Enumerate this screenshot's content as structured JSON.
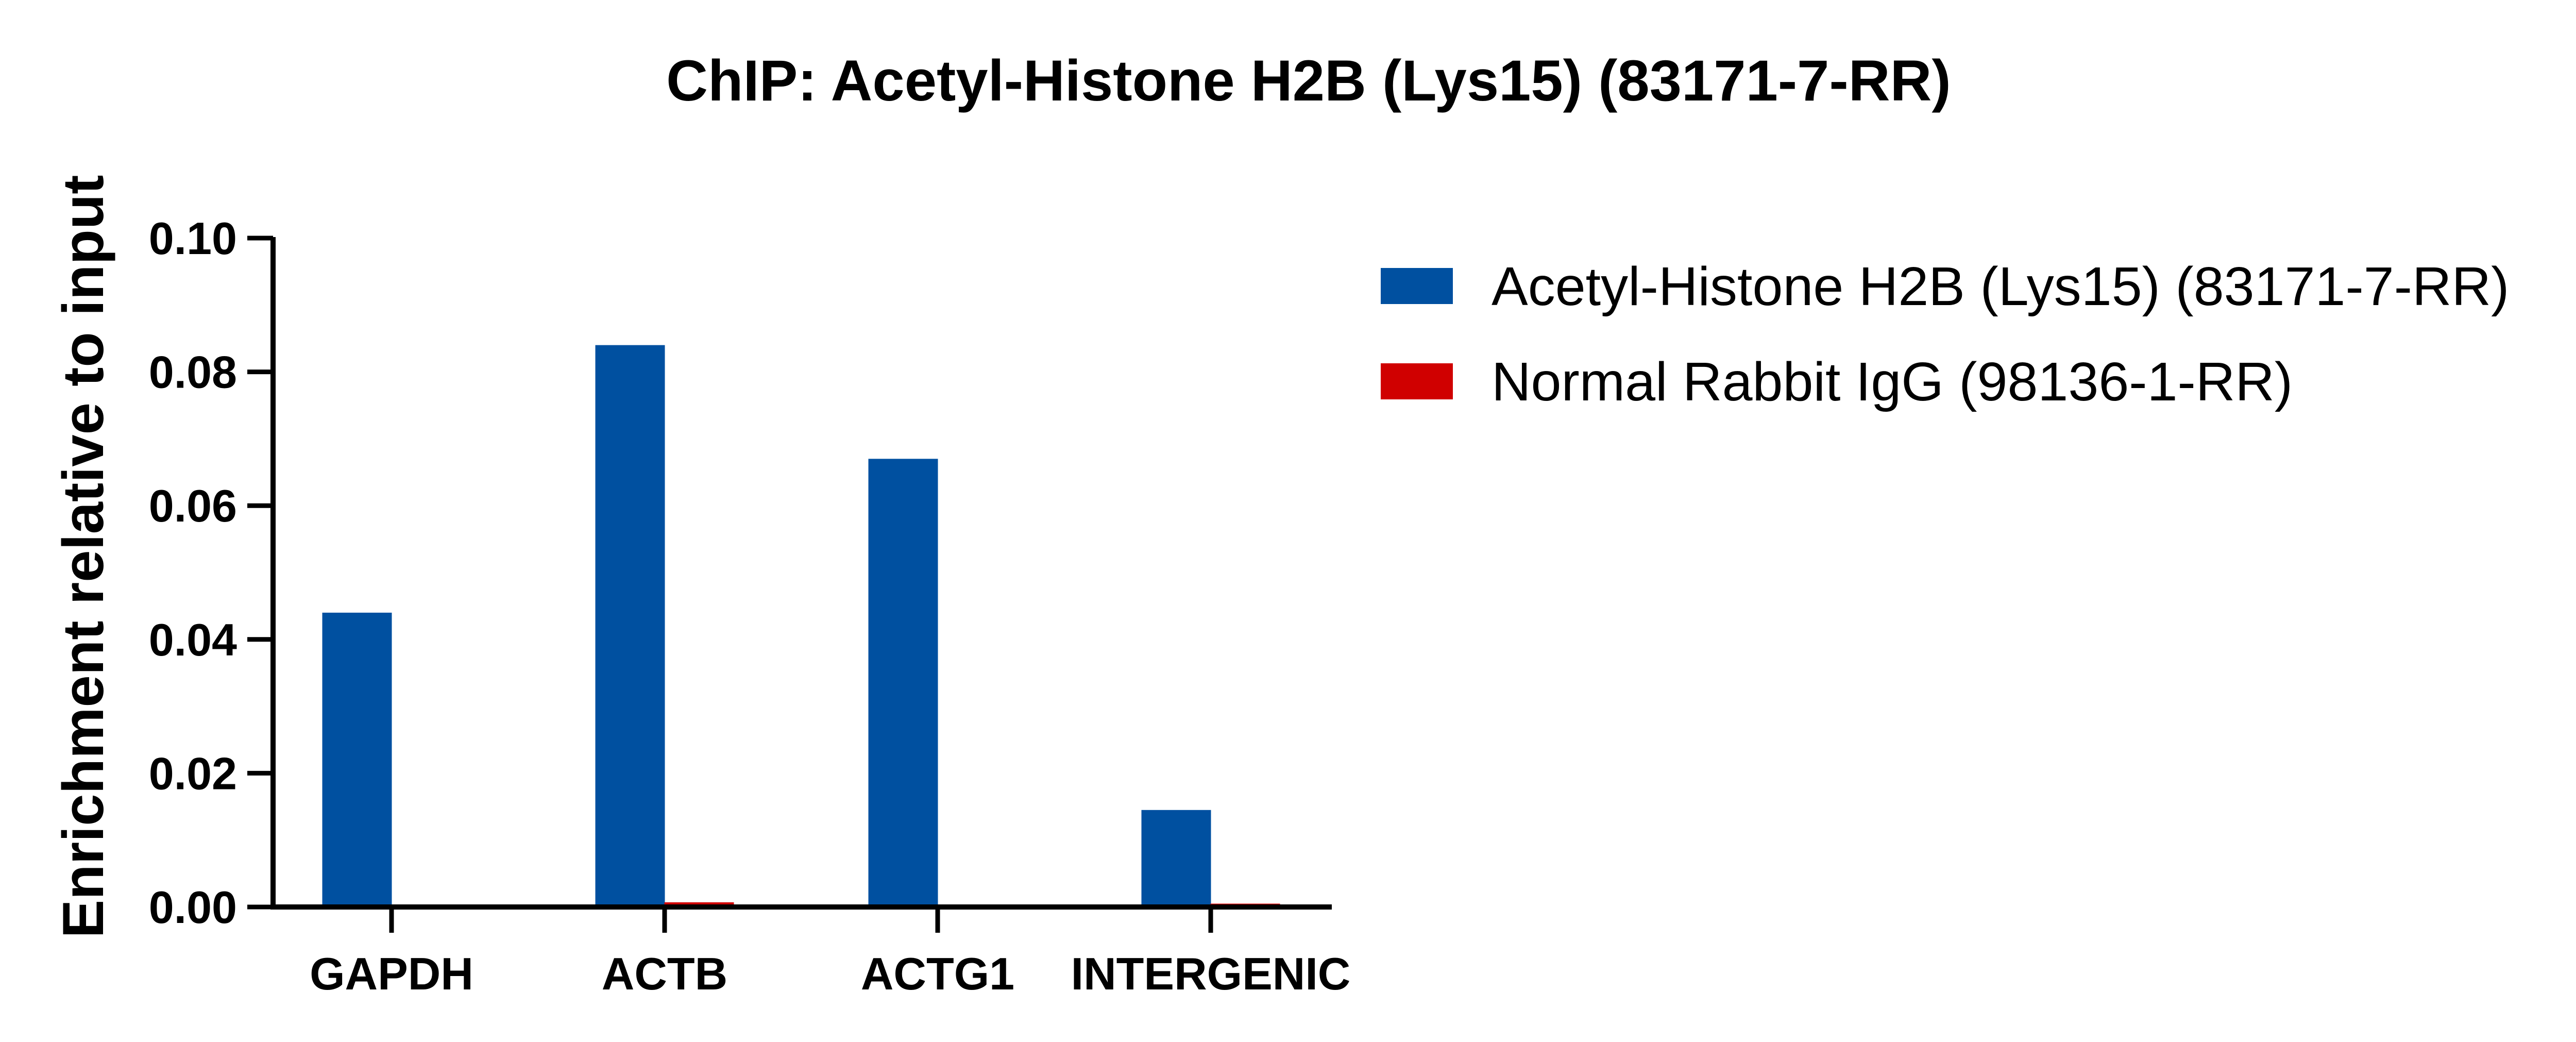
{
  "chart_data": {
    "type": "bar",
    "title": "ChIP: Acetyl-Histone H2B (Lys15) (83171-7-RR)",
    "xlabel": "",
    "ylabel": "Enrichment relative to input",
    "categories": [
      "GAPDH",
      "ACTB",
      "ACTG1",
      "INTERGENIC"
    ],
    "series": [
      {
        "name": "Acetyl-Histone H2B (Lys15) (83171-7-RR)",
        "color": "#0050A0",
        "values": [
          0.044,
          0.084,
          0.067,
          0.0145
        ]
      },
      {
        "name": "Normal Rabbit IgG (98136-1-RR)",
        "color": "#D00000",
        "values": [
          0.0,
          0.0007,
          0.0,
          0.0005
        ]
      }
    ],
    "ylim": [
      0,
      0.1
    ],
    "yticks": [
      "0.00",
      "0.02",
      "0.04",
      "0.06",
      "0.08",
      "0.10"
    ],
    "legend_position": "top-right",
    "grid": false
  }
}
